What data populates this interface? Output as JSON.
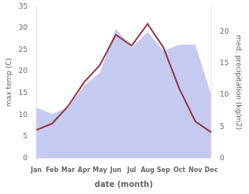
{
  "chart_data": {
    "type": "line",
    "categories": [
      "Jan",
      "Feb",
      "Mar",
      "Apr",
      "May",
      "Jun",
      "Jul",
      "Aug",
      "Sep",
      "Oct",
      "Nov",
      "Dec"
    ],
    "series": [
      {
        "type": "area",
        "color": "#c5caf0",
        "axis": "y2",
        "values": [
          8.0,
          7.0,
          8.0,
          11.5,
          13.5,
          20.5,
          17.5,
          20.0,
          17.0,
          18.0,
          18.0,
          10.0
        ]
      },
      {
        "type": "line",
        "color": "#993344",
        "values": [
          6.5,
          8.0,
          12.0,
          17.5,
          21.5,
          28.5,
          26.0,
          31.0,
          25.5,
          16.0,
          8.5,
          6.0
        ]
      }
    ],
    "xlabel": "date (month)",
    "ylabel": "max temp (C)",
    "y2label": "med. precipitation (kg/m2)",
    "ylim": [
      0,
      35
    ],
    "yticks": [
      0,
      5,
      10,
      15,
      20,
      25,
      30,
      35
    ],
    "y2lim": [
      0,
      24
    ],
    "y2ticks": [
      0,
      5,
      10,
      15,
      20
    ],
    "grid": false
  }
}
